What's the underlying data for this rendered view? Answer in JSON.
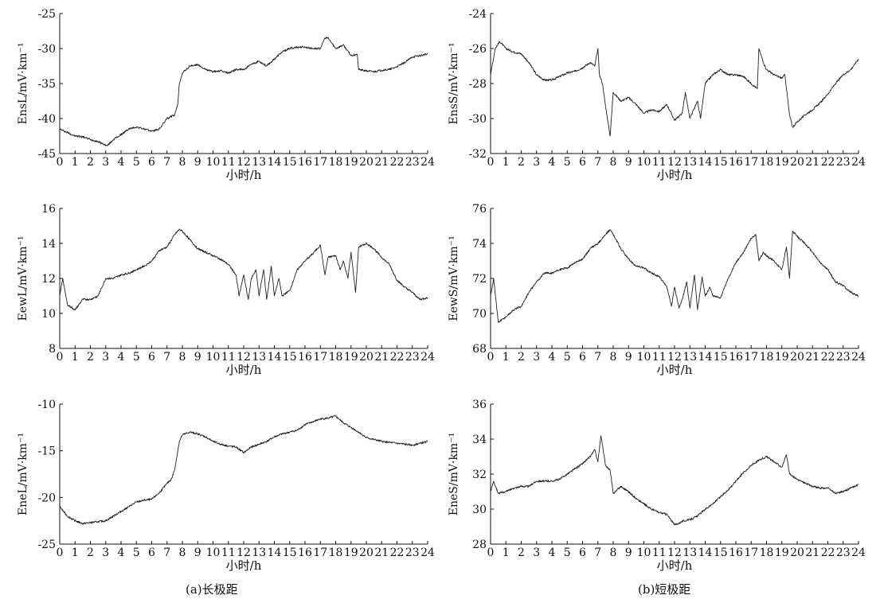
{
  "captions": {
    "left": "(a)长极距",
    "right": "(b)短极距"
  },
  "chart_data": [
    {
      "type": "line",
      "ylabel": "EnsL/mV·km⁻¹",
      "xlabel": "小时/h",
      "xlim": [
        0,
        24
      ],
      "ylim": [
        -45,
        -25
      ],
      "yticks": [
        -45,
        -40,
        -35,
        -30,
        -25
      ],
      "xticks": [
        0,
        1,
        2,
        3,
        4,
        5,
        6,
        7,
        8,
        9,
        10,
        11,
        12,
        13,
        14,
        15,
        16,
        17,
        18,
        19,
        20,
        21,
        22,
        23,
        24
      ],
      "series": [
        {
          "x": [
            0,
            0.5,
            1,
            1.5,
            2,
            2.5,
            3,
            3.1,
            3.5,
            4,
            4.5,
            5,
            5.5,
            6,
            6.5,
            7,
            7.5,
            7.7,
            7.8,
            8,
            8.5,
            9,
            9.5,
            10,
            10.5,
            11,
            11.5,
            12,
            12.5,
            13,
            13.5,
            14,
            14.5,
            15,
            15.5,
            16,
            16.5,
            17,
            17.3,
            17.5,
            18,
            18.5,
            19,
            19.4,
            19.5,
            20,
            20.5,
            21,
            21.5,
            22,
            22.5,
            23,
            23.5,
            24
          ],
          "y": [
            -41.5,
            -42,
            -42.5,
            -42.6,
            -43,
            -43.3,
            -43.8,
            -43.9,
            -43,
            -42.3,
            -41.5,
            -41.2,
            -41.5,
            -41.8,
            -41.5,
            -40,
            -39.5,
            -38,
            -35,
            -33.5,
            -32.5,
            -32.3,
            -33,
            -33.3,
            -33.2,
            -33.5,
            -33,
            -33,
            -32.3,
            -31.8,
            -32.5,
            -31.5,
            -30.5,
            -30,
            -29.8,
            -29.8,
            -30,
            -30,
            -28.5,
            -28.5,
            -30,
            -29.5,
            -31,
            -30.8,
            -33,
            -33.2,
            -33.3,
            -33.1,
            -33,
            -32.6,
            -32,
            -31.2,
            -31,
            -30.8
          ]
        }
      ]
    },
    {
      "type": "line",
      "ylabel": "EnsS/mV·km⁻¹",
      "xlabel": "小时/h",
      "xlim": [
        0,
        24
      ],
      "ylim": [
        -32,
        -24
      ],
      "yticks": [
        -32,
        -30,
        -28,
        -26,
        -24
      ],
      "xticks": [
        0,
        1,
        2,
        3,
        4,
        5,
        6,
        7,
        8,
        9,
        10,
        11,
        12,
        13,
        14,
        15,
        16,
        17,
        18,
        19,
        20,
        21,
        22,
        23,
        24
      ],
      "series": [
        {
          "x": [
            0,
            0.3,
            0.6,
            1,
            1.5,
            2,
            2.5,
            3,
            3.5,
            4,
            4.5,
            5,
            5.5,
            6,
            6.5,
            6.8,
            7,
            7.1,
            7.3,
            7.5,
            7.8,
            8,
            8.5,
            9,
            9.5,
            10,
            10.5,
            11,
            11.5,
            12,
            12.5,
            12.7,
            13,
            13.5,
            13.7,
            14,
            14.5,
            15,
            15.5,
            16,
            16.5,
            17,
            17.4,
            17.5,
            17.8,
            18,
            18.5,
            19,
            19.2,
            19.5,
            19.7,
            20,
            20.5,
            21,
            21.5,
            22,
            22.5,
            23,
            23.5,
            24
          ],
          "y": [
            -27.5,
            -26,
            -25.6,
            -26,
            -26.2,
            -26.3,
            -26.8,
            -27.5,
            -27.8,
            -27.8,
            -27.6,
            -27.4,
            -27.3,
            -27.1,
            -26.8,
            -27,
            -26,
            -27.5,
            -28,
            -29.3,
            -31,
            -28.5,
            -29,
            -28.8,
            -29.2,
            -29.7,
            -29.5,
            -29.6,
            -29.2,
            -30.1,
            -29.7,
            -28.5,
            -30,
            -29,
            -30,
            -28,
            -27.5,
            -27.2,
            -27.5,
            -27.5,
            -27.6,
            -28,
            -28.3,
            -26,
            -26.8,
            -27.2,
            -27.5,
            -27.7,
            -27.5,
            -29.8,
            -30.5,
            -30.2,
            -29.8,
            -29.5,
            -29.1,
            -28.6,
            -28,
            -27.5,
            -27.2,
            -26.6
          ]
        }
      ]
    },
    {
      "type": "line",
      "ylabel": "EewL/mV·km⁻¹",
      "xlabel": "小时/h",
      "xlim": [
        0,
        24
      ],
      "ylim": [
        8,
        16
      ],
      "yticks": [
        8,
        10,
        12,
        14,
        16
      ],
      "xticks": [
        0,
        1,
        2,
        3,
        4,
        5,
        6,
        7,
        8,
        9,
        10,
        11,
        12,
        13,
        14,
        15,
        16,
        17,
        18,
        19,
        20,
        21,
        22,
        23,
        24
      ],
      "series": [
        {
          "x": [
            0,
            0.2,
            0.5,
            1,
            1.5,
            2,
            2.5,
            3,
            3.5,
            4,
            4.5,
            5,
            5.5,
            6,
            6.5,
            7,
            7.5,
            7.8,
            8,
            8.5,
            9,
            9.5,
            10,
            10.5,
            11,
            11.5,
            11.7,
            12,
            12.3,
            12.5,
            12.8,
            13,
            13.3,
            13.5,
            13.8,
            14,
            14.3,
            14.5,
            15,
            15.5,
            16,
            16.5,
            17,
            17.3,
            17.5,
            18,
            18.3,
            18.5,
            18.8,
            19,
            19.3,
            19.5,
            20,
            20.5,
            21,
            21.5,
            22,
            22.5,
            23,
            23.5,
            24
          ],
          "y": [
            11,
            12,
            10.5,
            10.2,
            10.8,
            10.8,
            11,
            12,
            12,
            12.2,
            12.3,
            12.5,
            12.7,
            13,
            13.6,
            13.8,
            14.5,
            14.8,
            14.7,
            14.2,
            13.7,
            13.5,
            13.3,
            13.1,
            12.8,
            12.2,
            11,
            12.2,
            10.8,
            12,
            12.5,
            11,
            12.5,
            10.8,
            12.7,
            11,
            12,
            11,
            11.3,
            12.5,
            13,
            13.4,
            13.9,
            12.2,
            13.2,
            13.3,
            12.5,
            13,
            12,
            13.5,
            11.2,
            13.8,
            14,
            13.7,
            13.2,
            12.8,
            11.9,
            11.5,
            11.2,
            10.8,
            10.9
          ]
        }
      ]
    },
    {
      "type": "line",
      "ylabel": "EewS/mV·km⁻¹",
      "xlabel": "小时/h",
      "xlim": [
        0,
        24
      ],
      "ylim": [
        68,
        76
      ],
      "yticks": [
        68,
        70,
        72,
        74,
        76
      ],
      "xticks": [
        0,
        1,
        2,
        3,
        4,
        5,
        6,
        7,
        8,
        9,
        10,
        11,
        12,
        13,
        14,
        15,
        16,
        17,
        18,
        19,
        20,
        21,
        22,
        23,
        24
      ],
      "series": [
        {
          "x": [
            0,
            0.2,
            0.5,
            1,
            1.5,
            2,
            2.5,
            3,
            3.5,
            4,
            4.5,
            5,
            5.5,
            6,
            6.5,
            7,
            7.5,
            7.8,
            8,
            8.5,
            9,
            9.5,
            10,
            10.5,
            11,
            11.5,
            11.8,
            12,
            12.3,
            12.5,
            12.8,
            13,
            13.3,
            13.5,
            13.8,
            14,
            14.3,
            14.5,
            15,
            15.5,
            16,
            16.5,
            17,
            17.3,
            17.5,
            17.8,
            18,
            18.5,
            19,
            19.3,
            19.5,
            19.7,
            20,
            20.5,
            21,
            21.5,
            22,
            22.5,
            23,
            23.5,
            24
          ],
          "y": [
            71,
            72,
            69.5,
            69.8,
            70.2,
            70.4,
            71.2,
            71.8,
            72.3,
            72.3,
            72.5,
            72.6,
            72.9,
            73.1,
            73.7,
            74,
            74.5,
            74.8,
            74.5,
            73.7,
            73.1,
            72.7,
            72.6,
            72.3,
            72.1,
            71.5,
            70.4,
            71.5,
            70.3,
            70.8,
            71.8,
            70.3,
            72.2,
            70.2,
            72.1,
            71,
            71.5,
            71,
            70.9,
            72,
            72.9,
            73.5,
            74.3,
            74.5,
            73,
            73.5,
            73.3,
            73,
            72.5,
            73.8,
            72,
            74.7,
            74.4,
            74,
            73.5,
            72.9,
            72.5,
            71.8,
            71.6,
            71.2,
            71
          ]
        }
      ]
    },
    {
      "type": "line",
      "ylabel": "EneL/mV·km⁻¹",
      "xlabel": "小时/h",
      "xlim": [
        0,
        24
      ],
      "ylim": [
        -25,
        -10
      ],
      "yticks": [
        -25,
        -20,
        -15,
        -10
      ],
      "xticks": [
        0,
        1,
        2,
        3,
        4,
        5,
        6,
        7,
        8,
        9,
        10,
        11,
        12,
        13,
        14,
        15,
        16,
        17,
        18,
        19,
        20,
        21,
        22,
        23,
        24
      ],
      "series": [
        {
          "x": [
            0,
            0.5,
            1,
            1.5,
            2,
            2.5,
            3,
            3.5,
            4,
            4.5,
            5,
            5.5,
            6,
            6.5,
            7,
            7.3,
            7.5,
            7.8,
            8,
            8.5,
            9,
            9.5,
            10,
            10.5,
            11,
            11.5,
            12,
            12.5,
            13,
            13.5,
            14,
            14.5,
            15,
            15.5,
            16,
            16.5,
            17,
            17.5,
            18,
            18.5,
            19,
            19.5,
            20,
            20.5,
            21,
            21.5,
            22,
            22.5,
            23,
            23.5,
            24
          ],
          "y": [
            -21,
            -22,
            -22.5,
            -22.8,
            -22.7,
            -22.6,
            -22.5,
            -22,
            -21.5,
            -21,
            -20.5,
            -20.3,
            -20.2,
            -19.5,
            -18.5,
            -18,
            -17,
            -14,
            -13.3,
            -13,
            -13.2,
            -13.5,
            -14,
            -14.3,
            -14.5,
            -14.6,
            -15.2,
            -14.6,
            -14.3,
            -14,
            -13.5,
            -13.2,
            -13,
            -12.8,
            -12.2,
            -11.9,
            -11.6,
            -11.5,
            -11.3,
            -12,
            -12.5,
            -13,
            -13.6,
            -13.8,
            -14,
            -14.1,
            -14.2,
            -14.3,
            -14.4,
            -14.2,
            -14
          ]
        }
      ]
    },
    {
      "type": "line",
      "ylabel": "EneS/mV·km⁻¹",
      "xlabel": "小时/h",
      "xlim": [
        0,
        24
      ],
      "ylim": [
        28,
        36
      ],
      "yticks": [
        28,
        30,
        32,
        34,
        36
      ],
      "xticks": [
        0,
        1,
        2,
        3,
        4,
        5,
        6,
        7,
        8,
        9,
        10,
        11,
        12,
        13,
        14,
        15,
        16,
        17,
        18,
        19,
        20,
        21,
        22,
        23,
        24
      ],
      "series": [
        {
          "x": [
            0,
            0.2,
            0.5,
            1,
            1.5,
            2,
            2.5,
            3,
            3.5,
            4,
            4.5,
            5,
            5.5,
            6,
            6.5,
            6.8,
            7,
            7.2,
            7.5,
            7.8,
            8,
            8.5,
            9,
            9.5,
            10,
            10.5,
            11,
            11.5,
            12,
            12.3,
            12.5,
            13,
            13.5,
            14,
            14.5,
            15,
            15.5,
            16,
            16.5,
            17,
            17.5,
            18,
            18.5,
            19,
            19.3,
            19.5,
            20,
            20.5,
            21,
            21.5,
            22,
            22.5,
            23,
            23.5,
            24
          ],
          "y": [
            31,
            31.6,
            30.9,
            31,
            31.2,
            31.3,
            31.3,
            31.6,
            31.6,
            31.6,
            31.7,
            32,
            32.3,
            32.6,
            33,
            33.4,
            32.7,
            34.2,
            32.5,
            32.2,
            30.9,
            31.3,
            31,
            30.6,
            30.3,
            30,
            29.8,
            29.7,
            29.1,
            29.2,
            29.3,
            29.4,
            29.6,
            30,
            30.3,
            30.7,
            31.1,
            31.6,
            32.1,
            32.5,
            32.8,
            33,
            32.7,
            32.4,
            33.1,
            32,
            31.7,
            31.5,
            31.3,
            31.2,
            31.2,
            30.9,
            31,
            31.2,
            31.4
          ]
        }
      ]
    }
  ]
}
